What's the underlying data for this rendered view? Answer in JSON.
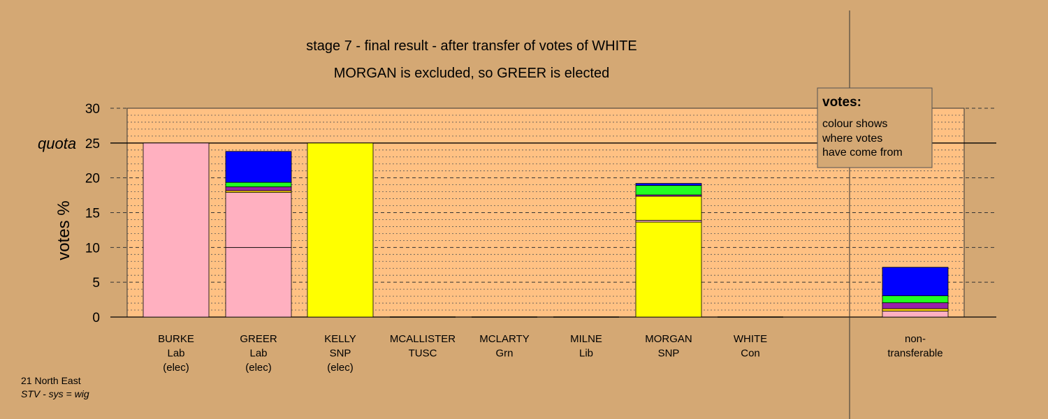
{
  "chart_data": {
    "type": "bar",
    "stacked": true,
    "title": "stage 7 - final result - after transfer of votes of WHITE",
    "subtitle": "MORGAN is excluded, so GREER is elected",
    "ylabel": "votes %",
    "ylim": [
      0,
      30
    ],
    "yticks": [
      "0",
      "5",
      "10",
      "15",
      "20",
      "25",
      "30"
    ],
    "quota_label": "quota",
    "quota_value": 25,
    "colors": {
      "background": "#D4A874",
      "plot": "#FFC183",
      "Lab": "#FFB0C0",
      "SNP": "#FFFF00",
      "Grn": "#22FF22",
      "Lib": "#FFD700",
      "TUSC": "#9922AA",
      "Con": "#0000FF",
      "grid": "#000000"
    },
    "candidates": [
      {
        "name": "BURKE",
        "party": "Lab",
        "note": "(elec)",
        "segments": [
          {
            "from": "Lab",
            "value": 25.0
          }
        ]
      },
      {
        "name": "GREER",
        "party": "Lab",
        "note": "(elec)",
        "segments": [
          {
            "from": "Lab",
            "value": 10.0
          },
          {
            "from": "Lab",
            "value": 7.9
          },
          {
            "from": "Lib",
            "value": 0.25
          },
          {
            "from": "TUSC",
            "value": 0.55
          },
          {
            "from": "Grn",
            "value": 0.65
          },
          {
            "from": "Con",
            "value": 4.45
          }
        ]
      },
      {
        "name": "KELLY",
        "party": "SNP",
        "note": "(elec)",
        "segments": [
          {
            "from": "SNP",
            "value": 25.0
          }
        ]
      },
      {
        "name": "MCALLISTER",
        "party": "TUSC",
        "note": "",
        "segments": []
      },
      {
        "name": "MCLARTY",
        "party": "Grn",
        "note": "",
        "segments": []
      },
      {
        "name": "MILNE",
        "party": "Lib",
        "note": "",
        "segments": []
      },
      {
        "name": "MORGAN",
        "party": "SNP",
        "note": "",
        "segments": [
          {
            "from": "SNP",
            "value": 13.65
          },
          {
            "from": "Lab",
            "value": 0.25
          },
          {
            "from": "SNP",
            "value": 3.45
          },
          {
            "from": "TUSC",
            "value": 0.2
          },
          {
            "from": "Grn",
            "value": 1.35
          },
          {
            "from": "Con",
            "value": 0.3
          }
        ]
      },
      {
        "name": "WHITE",
        "party": "Con",
        "note": "",
        "segments": []
      }
    ],
    "nontransferable": {
      "label_line1": "non-",
      "label_line2": "transferable",
      "segments": [
        {
          "from": "Lab",
          "value": 0.85
        },
        {
          "from": "Lib",
          "value": 0.35
        },
        {
          "from": "TUSC",
          "value": 0.85
        },
        {
          "from": "Grn",
          "value": 1.0
        },
        {
          "from": "Con",
          "value": 4.1
        }
      ]
    }
  },
  "legend": {
    "heading": "votes:",
    "line1": "colour shows",
    "line2": "where votes",
    "line3": "have come from"
  },
  "footer": {
    "region": "21 North East",
    "system": "STV - sys = wig"
  }
}
